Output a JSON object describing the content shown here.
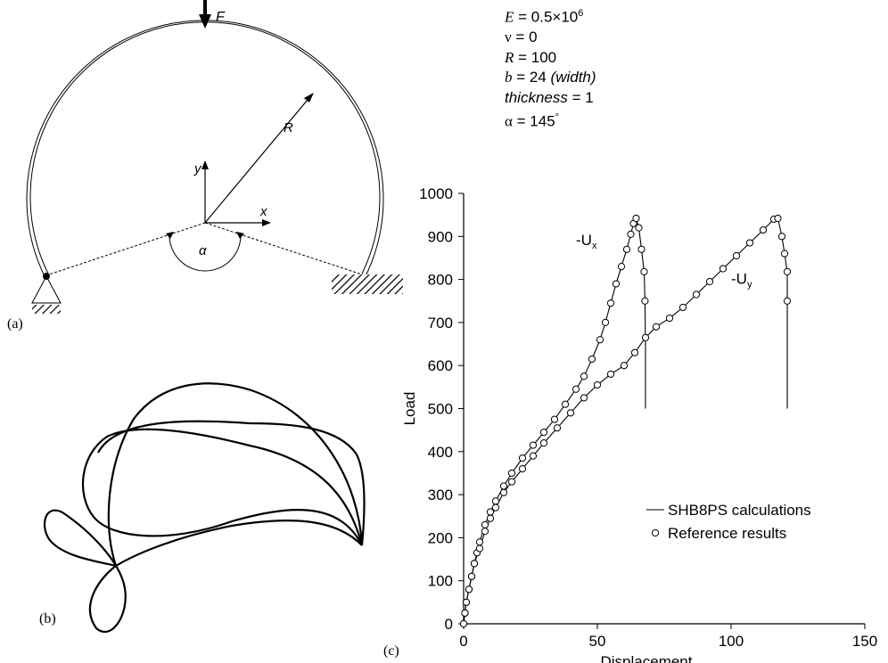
{
  "figure_a": {
    "panel_label": "(a)",
    "labels": {
      "force": "F",
      "radius": "R",
      "y_axis": "y",
      "x_axis": "x",
      "angle": "α"
    }
  },
  "figure_b": {
    "panel_label": "(b)"
  },
  "figure_c_label": "(c)",
  "parameters": [
    {
      "symbol": "E",
      "value": "= 0.5×10",
      "sup": "6",
      "note": ""
    },
    {
      "symbol": "ν",
      "value": "= 0",
      "sup": "",
      "note": ""
    },
    {
      "symbol": "R",
      "value": "= 100",
      "sup": "",
      "note": ""
    },
    {
      "symbol": "b",
      "value": "= 24",
      "sup": "",
      "note": "(width)"
    },
    {
      "symbol": "thickness",
      "value": "= 1",
      "sup": "",
      "note": ""
    },
    {
      "symbol": "α",
      "value": "= 145",
      "sup": "°",
      "note": ""
    }
  ],
  "chart_data": {
    "type": "line",
    "xlabel": "Displacement",
    "ylabel": "Load",
    "xlim": [
      0,
      150
    ],
    "ylim": [
      0,
      1000
    ],
    "xticks": [
      0,
      50,
      100,
      150
    ],
    "yticks": [
      0,
      100,
      200,
      300,
      400,
      500,
      600,
      700,
      800,
      900,
      1000
    ],
    "legend": {
      "placement": "bottom-right",
      "entries": [
        "SHB8PS calculations",
        "Reference results"
      ]
    },
    "curve_labels": [
      {
        "text": "-U",
        "sub": "x"
      },
      {
        "text": "-U",
        "sub": "y"
      }
    ],
    "series": [
      {
        "name": "-Ux",
        "points": [
          [
            0,
            0
          ],
          [
            0.5,
            25
          ],
          [
            1,
            50
          ],
          [
            2,
            80
          ],
          [
            3,
            110
          ],
          [
            4,
            140
          ],
          [
            5,
            165
          ],
          [
            6,
            190
          ],
          [
            8,
            230
          ],
          [
            10,
            260
          ],
          [
            12,
            285
          ],
          [
            15,
            320
          ],
          [
            18,
            350
          ],
          [
            22,
            385
          ],
          [
            26,
            415
          ],
          [
            30,
            445
          ],
          [
            34,
            475
          ],
          [
            38,
            510
          ],
          [
            42,
            545
          ],
          [
            45,
            575
          ],
          [
            48,
            615
          ],
          [
            51,
            660
          ],
          [
            53,
            700
          ],
          [
            55,
            745
          ],
          [
            57,
            790
          ],
          [
            59,
            830
          ],
          [
            61,
            870
          ],
          [
            62.5,
            905
          ],
          [
            63.5,
            930
          ],
          [
            64.5,
            942
          ],
          [
            65.5,
            920
          ],
          [
            66.5,
            870
          ],
          [
            67.5,
            818
          ],
          [
            67.8,
            750
          ],
          [
            68,
            640
          ],
          [
            68,
            500
          ]
        ]
      },
      {
        "name": "-Uy",
        "points": [
          [
            0,
            0
          ],
          [
            0.5,
            25
          ],
          [
            1,
            50
          ],
          [
            2,
            80
          ],
          [
            3,
            110
          ],
          [
            4,
            140
          ],
          [
            6,
            175
          ],
          [
            8,
            215
          ],
          [
            10,
            245
          ],
          [
            12,
            270
          ],
          [
            15,
            305
          ],
          [
            18,
            330
          ],
          [
            22,
            360
          ],
          [
            26,
            390
          ],
          [
            30,
            420
          ],
          [
            35,
            455
          ],
          [
            40,
            490
          ],
          [
            45,
            525
          ],
          [
            50,
            555
          ],
          [
            55,
            580
          ],
          [
            60,
            600
          ],
          [
            64,
            630
          ],
          [
            68,
            665
          ],
          [
            72,
            690
          ],
          [
            77,
            710
          ],
          [
            82,
            735
          ],
          [
            87,
            765
          ],
          [
            92,
            795
          ],
          [
            97,
            825
          ],
          [
            102,
            855
          ],
          [
            107,
            885
          ],
          [
            112,
            915
          ],
          [
            116,
            940
          ],
          [
            117.5,
            942
          ],
          [
            119,
            900
          ],
          [
            120,
            860
          ],
          [
            121,
            818
          ],
          [
            121,
            750
          ],
          [
            121,
            640
          ],
          [
            121,
            500
          ]
        ]
      }
    ]
  }
}
